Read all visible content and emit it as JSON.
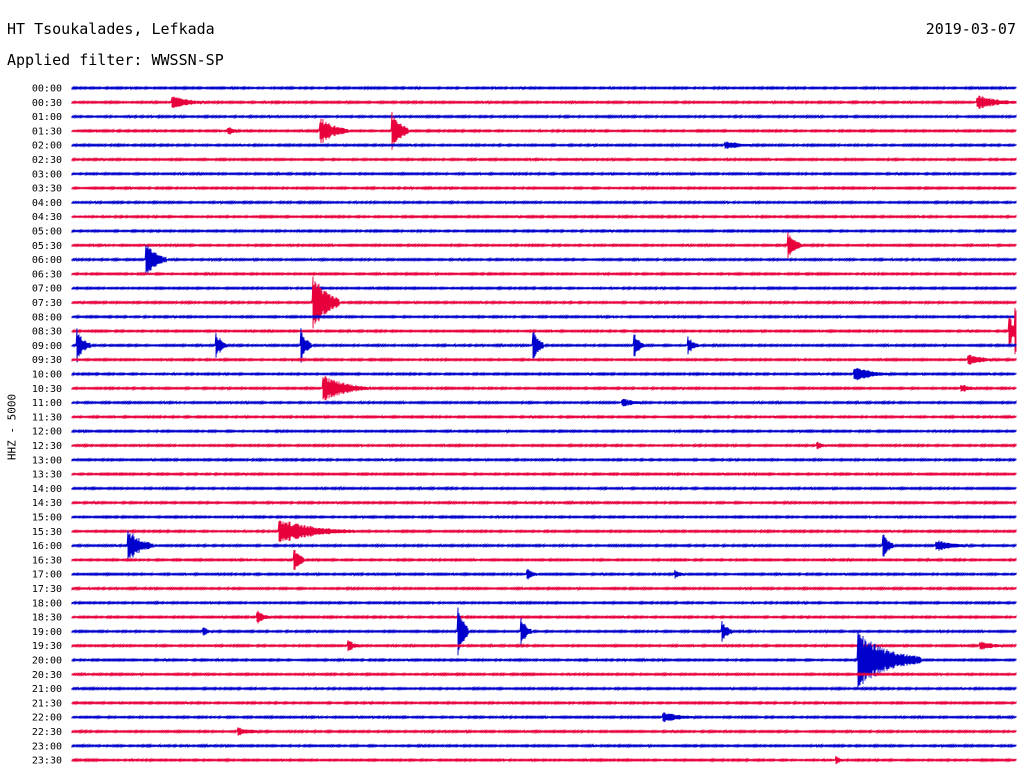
{
  "header": {
    "station": "HT Tsoukalades, Lefkada",
    "date": "2019-03-07",
    "filter": "Applied filter: WWSSN-SP"
  },
  "side_label": "HHZ - 5000",
  "colors": {
    "even_trace": "#0000cc",
    "odd_trace": "#e8003c"
  },
  "chart_data": {
    "type": "line",
    "title": "HT Tsoukalades, Lefkada",
    "subtitle": "Applied filter: WWSSN-SP",
    "ylabel": "HHZ - 5000",
    "xlabel": "",
    "row_labels": [
      "00:00",
      "00:30",
      "01:00",
      "01:30",
      "02:00",
      "02:30",
      "03:00",
      "03:30",
      "04:00",
      "04:30",
      "05:00",
      "05:30",
      "06:00",
      "06:30",
      "07:00",
      "07:30",
      "08:00",
      "08:30",
      "09:00",
      "09:30",
      "10:00",
      "10:30",
      "11:00",
      "11:30",
      "12:00",
      "12:30",
      "13:00",
      "13:30",
      "14:00",
      "14:30",
      "15:00",
      "15:30",
      "16:00",
      "16:30",
      "17:00",
      "17:30",
      "18:00",
      "18:30",
      "19:00",
      "19:30",
      "20:00",
      "20:30",
      "21:00",
      "21:30",
      "22:00",
      "22:30",
      "23:00",
      "23:30"
    ],
    "x_range_minutes": [
      0,
      30
    ],
    "grid": false,
    "events": [
      {
        "row": 1,
        "minute": 3.2,
        "amplitude": 0.45,
        "duration": 1.2
      },
      {
        "row": 1,
        "minute": 28.8,
        "amplitude": 0.5,
        "duration": 1.5
      },
      {
        "row": 3,
        "minute": 5.0,
        "amplitude": 0.3,
        "duration": 0.4
      },
      {
        "row": 3,
        "minute": 7.9,
        "amplitude": 1.0,
        "duration": 0.9
      },
      {
        "row": 3,
        "minute": 10.2,
        "amplitude": 1.3,
        "duration": 0.5
      },
      {
        "row": 4,
        "minute": 20.8,
        "amplitude": 0.3,
        "duration": 1.2
      },
      {
        "row": 12,
        "minute": 2.4,
        "amplitude": 1.2,
        "duration": 0.6
      },
      {
        "row": 11,
        "minute": 22.8,
        "amplitude": 0.8,
        "duration": 0.4
      },
      {
        "row": 15,
        "minute": 7.7,
        "amplitude": 2.0,
        "duration": 0.8
      },
      {
        "row": 18,
        "minute": 0.2,
        "amplitude": 1.0,
        "duration": 0.4
      },
      {
        "row": 18,
        "minute": 4.6,
        "amplitude": 0.9,
        "duration": 0.3
      },
      {
        "row": 18,
        "minute": 7.3,
        "amplitude": 1.1,
        "duration": 0.3
      },
      {
        "row": 18,
        "minute": 14.7,
        "amplitude": 0.9,
        "duration": 0.3
      },
      {
        "row": 18,
        "minute": 17.9,
        "amplitude": 0.8,
        "duration": 0.3
      },
      {
        "row": 18,
        "minute": 19.6,
        "amplitude": 0.6,
        "duration": 0.3
      },
      {
        "row": 17,
        "minute": 30.0,
        "amplitude": 1.5,
        "duration": 0.3
      },
      {
        "row": 17,
        "minute": 29.8,
        "amplitude": 1.0,
        "duration": 0.4
      },
      {
        "row": 19,
        "minute": 28.5,
        "amplitude": 0.4,
        "duration": 1.0
      },
      {
        "row": 20,
        "minute": 24.9,
        "amplitude": 0.5,
        "duration": 1.2
      },
      {
        "row": 21,
        "minute": 8.0,
        "amplitude": 1.0,
        "duration": 1.4
      },
      {
        "row": 21,
        "minute": 28.3,
        "amplitude": 0.3,
        "duration": 0.6
      },
      {
        "row": 22,
        "minute": 17.5,
        "amplitude": 0.3,
        "duration": 1.0
      },
      {
        "row": 25,
        "minute": 23.7,
        "amplitude": 0.3,
        "duration": 0.3
      },
      {
        "row": 31,
        "minute": 6.6,
        "amplitude": 0.9,
        "duration": 2.4
      },
      {
        "row": 32,
        "minute": 1.8,
        "amplitude": 1.2,
        "duration": 0.8
      },
      {
        "row": 32,
        "minute": 25.8,
        "amplitude": 0.9,
        "duration": 0.3
      },
      {
        "row": 32,
        "minute": 27.5,
        "amplitude": 0.4,
        "duration": 1.2
      },
      {
        "row": 33,
        "minute": 7.1,
        "amplitude": 0.8,
        "duration": 0.3
      },
      {
        "row": 34,
        "minute": 14.5,
        "amplitude": 0.4,
        "duration": 0.3
      },
      {
        "row": 34,
        "minute": 19.2,
        "amplitude": 0.3,
        "duration": 0.3
      },
      {
        "row": 37,
        "minute": 5.9,
        "amplitude": 0.5,
        "duration": 0.4
      },
      {
        "row": 38,
        "minute": 4.2,
        "amplitude": 0.3,
        "duration": 0.3
      },
      {
        "row": 38,
        "minute": 12.3,
        "amplitude": 1.6,
        "duration": 0.3
      },
      {
        "row": 38,
        "minute": 14.3,
        "amplitude": 0.9,
        "duration": 0.3
      },
      {
        "row": 38,
        "minute": 20.7,
        "amplitude": 0.6,
        "duration": 0.3
      },
      {
        "row": 39,
        "minute": 8.8,
        "amplitude": 0.4,
        "duration": 0.4
      },
      {
        "row": 39,
        "minute": 28.9,
        "amplitude": 0.3,
        "duration": 1.0
      },
      {
        "row": 40,
        "minute": 25.0,
        "amplitude": 2.0,
        "duration": 2.0
      },
      {
        "row": 44,
        "minute": 18.8,
        "amplitude": 0.4,
        "duration": 1.2
      },
      {
        "row": 45,
        "minute": 5.3,
        "amplitude": 0.3,
        "duration": 1.0
      },
      {
        "row": 47,
        "minute": 24.3,
        "amplitude": 0.3,
        "duration": 0.2
      }
    ]
  }
}
